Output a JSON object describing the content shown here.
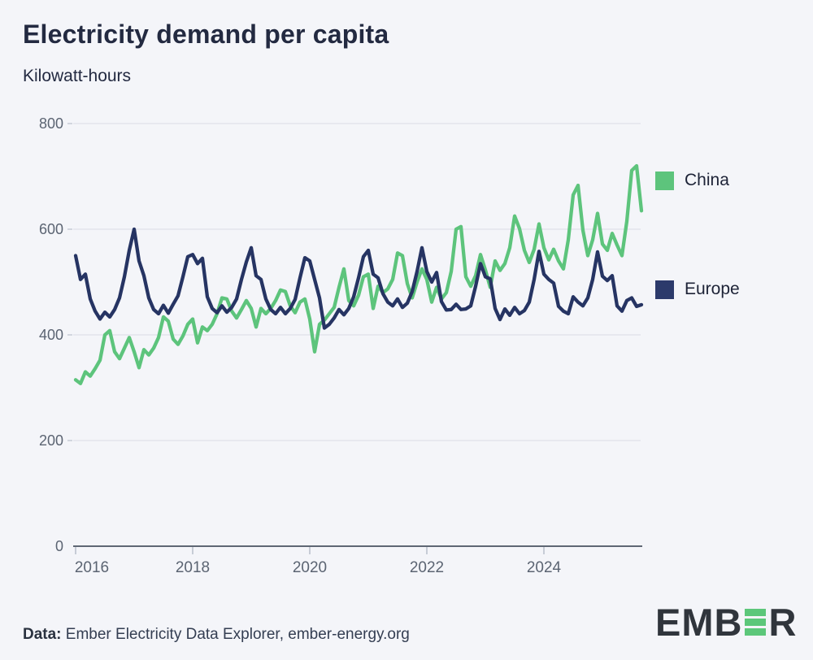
{
  "title": "Electricity demand per capita",
  "subtitle": "Kilowatt-hours",
  "footer": {
    "label": "Data:",
    "text": " Ember Electricity Data Explorer, ember-energy.org"
  },
  "logo": {
    "pre": "EMB",
    "green_letter": "E",
    "post": "R"
  },
  "colors": {
    "background": "#f4f5f9",
    "china": "#5dc47c",
    "europe": "#263463",
    "grid": "#dfe1e9",
    "axis_line": "#5f6774",
    "tick_mark": "#c7ccd6",
    "tick_label": "#5b6472",
    "title_text": "#232a41"
  },
  "legend": [
    {
      "label": "China",
      "color": "#5dc47c"
    },
    {
      "label": "Europe",
      "color": "#263463"
    }
  ],
  "chart_data": {
    "type": "line",
    "title": "Electricity demand per capita",
    "ylabel": "Kilowatt-hours",
    "x_start": "2016-01",
    "x_end": "2025-09",
    "x_frequency": "monthly",
    "x_tick_labels": [
      "2016",
      "2018",
      "2020",
      "2022",
      "2024"
    ],
    "y_ticks": [
      0,
      200,
      400,
      600,
      800
    ],
    "ylim": [
      0,
      800
    ],
    "grid": "horizontal",
    "legend_position": "right",
    "series": [
      {
        "name": "China",
        "color": "#5dc47c",
        "values": [
          315,
          308,
          330,
          322,
          336,
          352,
          400,
          408,
          368,
          355,
          375,
          395,
          368,
          338,
          372,
          362,
          375,
          395,
          434,
          426,
          392,
          382,
          398,
          420,
          430,
          385,
          415,
          408,
          420,
          440,
          470,
          468,
          445,
          432,
          448,
          465,
          450,
          415,
          450,
          440,
          450,
          465,
          485,
          482,
          455,
          442,
          462,
          468,
          430,
          368,
          420,
          428,
          440,
          452,
          490,
          525,
          465,
          455,
          475,
          510,
          515,
          450,
          492,
          480,
          487,
          505,
          555,
          550,
          497,
          470,
          500,
          525,
          505,
          462,
          490,
          468,
          480,
          520,
          600,
          605,
          510,
          492,
          512,
          552,
          523,
          490,
          540,
          522,
          535,
          565,
          625,
          601,
          560,
          537,
          562,
          610,
          565,
          542,
          562,
          540,
          525,
          580,
          665,
          683,
          598,
          550,
          580,
          630,
          572,
          560,
          592,
          570,
          550,
          615,
          711,
          720,
          635
        ]
      },
      {
        "name": "Europe",
        "color": "#263463",
        "values": [
          550,
          505,
          515,
          468,
          445,
          430,
          443,
          434,
          448,
          470,
          510,
          560,
          600,
          540,
          512,
          470,
          448,
          440,
          456,
          441,
          458,
          474,
          510,
          548,
          552,
          535,
          545,
          472,
          450,
          442,
          455,
          443,
          452,
          468,
          505,
          538,
          565,
          512,
          505,
          468,
          448,
          440,
          452,
          440,
          450,
          467,
          508,
          546,
          540,
          505,
          470,
          413,
          420,
          432,
          448,
          438,
          450,
          472,
          508,
          548,
          560,
          515,
          508,
          478,
          462,
          455,
          468,
          452,
          460,
          482,
          520,
          565,
          520,
          500,
          518,
          463,
          447,
          448,
          458,
          448,
          449,
          455,
          492,
          535,
          510,
          506,
          450,
          429,
          449,
          437,
          452,
          440,
          446,
          462,
          505,
          558,
          515,
          505,
          498,
          454,
          445,
          440,
          472,
          462,
          455,
          470,
          505,
          557,
          511,
          503,
          512,
          455,
          445,
          465,
          470,
          454,
          457
        ]
      }
    ]
  }
}
